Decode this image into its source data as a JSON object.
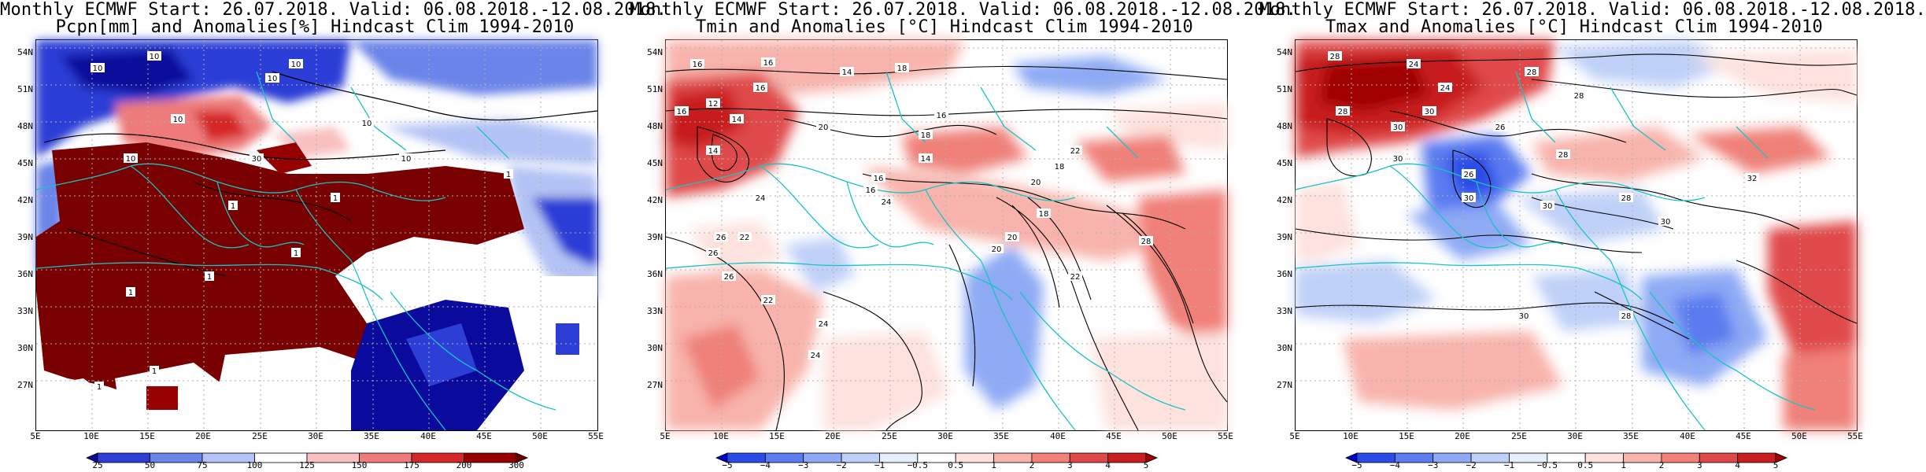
{
  "panels": [
    {
      "id": "pcpn",
      "title_line1": "Monthly ECMWF Start: 26.07.2018. Valid: 06.08.2018.-12.08.2018.",
      "title_line2": "Pcpn[mm] and Anomalies[%] Hindcast Clim 1994-2010",
      "y_ticks": [
        "54N",
        "51N",
        "48N",
        "45N",
        "42N",
        "39N",
        "36N",
        "33N",
        "30N",
        "27N"
      ],
      "x_ticks": [
        "5E",
        "10E",
        "15E",
        "20E",
        "25E",
        "30E",
        "35E",
        "40E",
        "45E",
        "50E",
        "55E"
      ],
      "colorbar_labels": [
        "25",
        "50",
        "75",
        "100",
        "125",
        "150",
        "175",
        "200",
        "300"
      ],
      "colorbar_colors": [
        "#0a0a9c",
        "#2c3ed6",
        "#6a84ea",
        "#b4c3f5",
        "#ffffff",
        "#f8c0c0",
        "#ee7a7a",
        "#d62828",
        "#960000",
        "#6e0000"
      ],
      "contour_labels": [
        "10",
        "10",
        "10",
        "10",
        "10",
        "30",
        "10",
        "10",
        "1",
        "10",
        "1",
        "1",
        "1",
        "1",
        "1",
        "1",
        "1"
      ]
    },
    {
      "id": "tmin",
      "title_line1": "Monthly ECMWF Start: 26.07.2018. Valid: 06.08.2018.-12.08.2018.",
      "title_line2": "Tmin and Anomalies [°C] Hindcast Clim 1994-2010",
      "y_ticks": [
        "54N",
        "51N",
        "48N",
        "45N",
        "42N",
        "39N",
        "36N",
        "33N",
        "30N",
        "27N"
      ],
      "x_ticks": [
        "5E",
        "10E",
        "15E",
        "20E",
        "25E",
        "30E",
        "35E",
        "40E",
        "45E",
        "50E",
        "55E"
      ],
      "colorbar_labels": [
        "−5",
        "−4",
        "−3",
        "−2",
        "−1",
        "−0.5",
        "0.5",
        "1",
        "2",
        "3",
        "4",
        "5"
      ],
      "colorbar_colors": [
        "#0000d0",
        "#2a4be8",
        "#5a7cf0",
        "#8eaaf5",
        "#bfd0f8",
        "#e6edfb",
        "#ffffff",
        "#fde2de",
        "#f8b4ac",
        "#f08078",
        "#e04848",
        "#c81e1e",
        "#a00000"
      ],
      "contour_labels": [
        "16",
        "16",
        "18",
        "16",
        "14",
        "16",
        "12",
        "14",
        "14",
        "20",
        "18",
        "16",
        "18",
        "20",
        "22",
        "24",
        "14",
        "26",
        "16",
        "16",
        "24",
        "26",
        "22",
        "20",
        "26",
        "22",
        "24",
        "24",
        "18",
        "22",
        "28",
        "20"
      ]
    },
    {
      "id": "tmax",
      "title_line1": "Monthly ECMWF Start: 26.07.2018. Valid: 06.08.2018.-12.08.2018.",
      "title_line2": "Tmax and Anomalies [°C] Hindcast Clim 1994-2010",
      "y_ticks": [
        "54N",
        "51N",
        "48N",
        "45N",
        "42N",
        "39N",
        "36N",
        "33N",
        "30N",
        "27N"
      ],
      "x_ticks": [
        "5E",
        "10E",
        "15E",
        "20E",
        "25E",
        "30E",
        "35E",
        "40E",
        "45E",
        "50E",
        "55E"
      ],
      "colorbar_labels": [
        "−5",
        "−4",
        "−3",
        "−2",
        "−1",
        "−0.5",
        "0.5",
        "1",
        "2",
        "3",
        "4",
        "5"
      ],
      "colorbar_colors": [
        "#0000d0",
        "#2a4be8",
        "#5a7cf0",
        "#8eaaf5",
        "#bfd0f8",
        "#e6edfb",
        "#ffffff",
        "#fde2de",
        "#f8b4ac",
        "#f08078",
        "#e04848",
        "#c81e1e",
        "#a00000"
      ],
      "contour_labels": [
        "28",
        "24",
        "28",
        "24",
        "28",
        "28",
        "30",
        "30",
        "26",
        "28",
        "30",
        "26",
        "30",
        "30",
        "28",
        "32",
        "30",
        "28",
        "30"
      ]
    }
  ],
  "colors": {
    "coast": "#19c3c3",
    "contour": "#000000",
    "grid": "#b0b0b0"
  }
}
